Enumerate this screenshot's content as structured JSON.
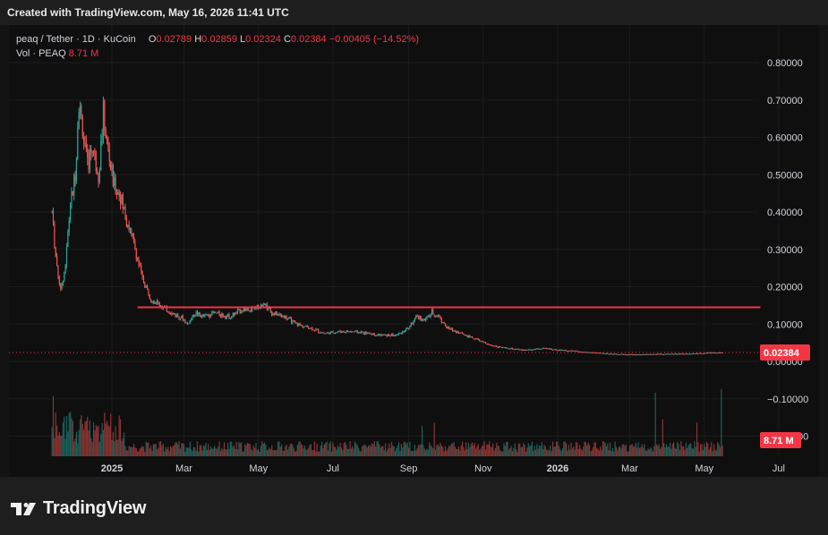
{
  "header": {
    "created_text": "Created with TradingView.com, May 16, 2026 11:41 UTC"
  },
  "legend": {
    "symbol": "peaq / Tether · 1D · KuCoin",
    "o_label": "O",
    "o_value": "0.02789",
    "h_label": "H",
    "h_value": "0.02859",
    "l_label": "L",
    "l_value": "0.02324",
    "c_label": "C",
    "c_value": "0.02384",
    "change": "−0.00405 (−14.52%)",
    "vol_label": "Vol · PEAQ",
    "vol_value": "8.71 M"
  },
  "brand": {
    "name": "TradingView"
  },
  "colors": {
    "up": "#26a69a",
    "down": "#ef5350",
    "resistance": "#f23645",
    "price_tag": "#f23645",
    "background": "#0f0f0f",
    "grid": "#1c1c1c"
  },
  "chart_data": {
    "type": "candlestick",
    "y_axis": {
      "ticks": [
        "0.80000",
        "0.70000",
        "0.60000",
        "0.50000",
        "0.40000",
        "0.30000",
        "0.20000",
        "0.10000",
        "0.00000",
        "−0.10000",
        "−0.20000"
      ],
      "range": [
        -0.2,
        0.8
      ]
    },
    "x_axis": {
      "ticks": [
        "2025",
        "Mar",
        "May",
        "Jul",
        "Sep",
        "Nov",
        "2026",
        "Mar",
        "May",
        "Jul"
      ]
    },
    "last_price": "0.02384",
    "last_price_value": 0.02384,
    "volume_tag": "8.71 M",
    "resistance_line": {
      "price": 0.145,
      "from": "2025-01-22",
      "to": "2026-06-16"
    },
    "price_path": [
      [
        "2024-11-13",
        0.4
      ],
      [
        "2024-11-16",
        0.28
      ],
      [
        "2024-11-20",
        0.19
      ],
      [
        "2024-11-24",
        0.26
      ],
      [
        "2024-11-28",
        0.42
      ],
      [
        "2024-12-02",
        0.5
      ],
      [
        "2024-12-05",
        0.7
      ],
      [
        "2024-12-08",
        0.62
      ],
      [
        "2024-12-12",
        0.52
      ],
      [
        "2024-12-16",
        0.58
      ],
      [
        "2024-12-21",
        0.5
      ],
      [
        "2024-12-25",
        0.66
      ],
      [
        "2024-12-28",
        0.58
      ],
      [
        "2025-01-02",
        0.48
      ],
      [
        "2025-01-08",
        0.44
      ],
      [
        "2025-01-14",
        0.37
      ],
      [
        "2025-01-20",
        0.3
      ],
      [
        "2025-01-26",
        0.22
      ],
      [
        "2025-02-02",
        0.17
      ],
      [
        "2025-02-10",
        0.15
      ],
      [
        "2025-02-18",
        0.13
      ],
      [
        "2025-02-26",
        0.12
      ],
      [
        "2025-03-04",
        0.1
      ],
      [
        "2025-03-10",
        0.13
      ],
      [
        "2025-03-16",
        0.12
      ],
      [
        "2025-03-26",
        0.13
      ],
      [
        "2025-04-08",
        0.12
      ],
      [
        "2025-04-18",
        0.14
      ],
      [
        "2025-04-28",
        0.14
      ],
      [
        "2025-05-05",
        0.16
      ],
      [
        "2025-05-12",
        0.13
      ],
      [
        "2025-05-22",
        0.12
      ],
      [
        "2025-06-01",
        0.1
      ],
      [
        "2025-06-12",
        0.09
      ],
      [
        "2025-06-24",
        0.075
      ],
      [
        "2025-07-06",
        0.08
      ],
      [
        "2025-07-18",
        0.08
      ],
      [
        "2025-07-30",
        0.075
      ],
      [
        "2025-08-10",
        0.07
      ],
      [
        "2025-08-22",
        0.07
      ],
      [
        "2025-09-01",
        0.09
      ],
      [
        "2025-09-08",
        0.12
      ],
      [
        "2025-09-14",
        0.11
      ],
      [
        "2025-09-20",
        0.13
      ],
      [
        "2025-09-26",
        0.12
      ],
      [
        "2025-10-02",
        0.09
      ],
      [
        "2025-10-10",
        0.08
      ],
      [
        "2025-10-18",
        0.07
      ],
      [
        "2025-10-26",
        0.06
      ],
      [
        "2025-11-05",
        0.045
      ],
      [
        "2025-11-20",
        0.035
      ],
      [
        "2025-12-05",
        0.03
      ],
      [
        "2025-12-20",
        0.035
      ],
      [
        "2026-01-05",
        0.03
      ],
      [
        "2026-01-25",
        0.025
      ],
      [
        "2026-02-15",
        0.02
      ],
      [
        "2026-03-05",
        0.018
      ],
      [
        "2026-03-25",
        0.02
      ],
      [
        "2026-04-15",
        0.02
      ],
      [
        "2026-05-05",
        0.023
      ],
      [
        "2026-05-16",
        0.024
      ]
    ],
    "volume_spikes": [
      [
        "2024-11-14",
        0.9
      ],
      [
        "2024-12-06",
        0.55
      ],
      [
        "2025-09-12",
        0.45
      ],
      [
        "2025-09-22",
        0.5
      ],
      [
        "2026-03-22",
        0.95
      ],
      [
        "2026-03-28",
        0.55
      ],
      [
        "2026-04-25",
        0.5
      ],
      [
        "2026-05-15",
        1.0
      ]
    ]
  }
}
